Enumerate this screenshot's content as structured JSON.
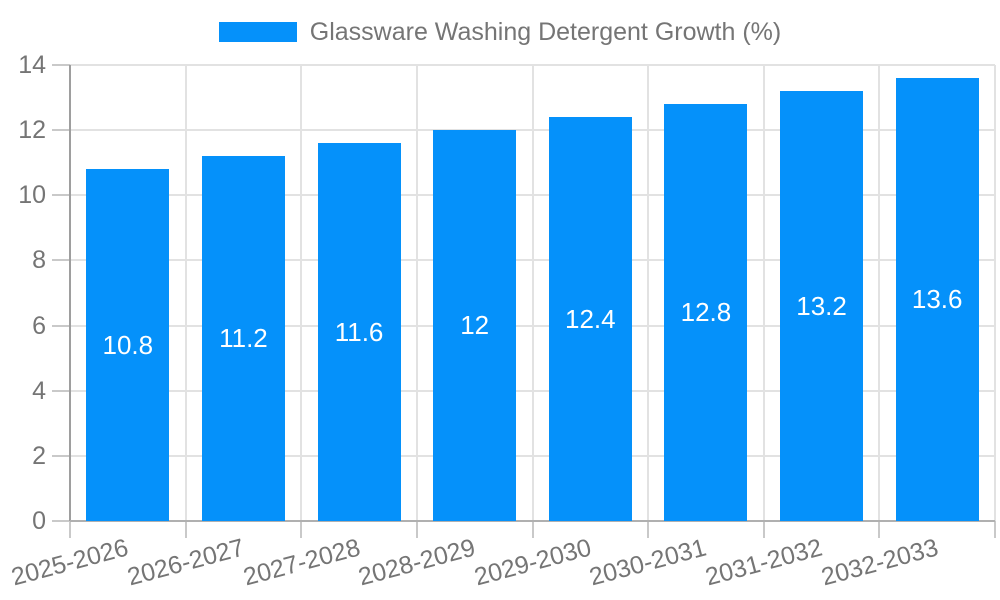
{
  "legend": {
    "label": "Glassware Washing Detergent Growth (%)"
  },
  "chart_data": {
    "type": "bar",
    "title": "Glassware Washing Detergent Growth (%)",
    "categories": [
      "2025-2026",
      "2026-2027",
      "2027-2028",
      "2028-2029",
      "2029-2030",
      "2030-2031",
      "2031-2032",
      "2032-2033"
    ],
    "series": [
      {
        "name": "Glassware Washing Detergent Growth (%)",
        "values": [
          10.8,
          11.2,
          11.6,
          12,
          12.4,
          12.8,
          13.2,
          13.6
        ]
      }
    ],
    "values": [
      10.8,
      11.2,
      11.6,
      12,
      12.4,
      12.8,
      13.2,
      13.6
    ],
    "data_labels": [
      "10.8",
      "11.2",
      "11.6",
      "12",
      "12.4",
      "12.8",
      "13.2",
      "13.6"
    ],
    "xlabel": "",
    "ylabel": "",
    "ylim": [
      0,
      14
    ],
    "yticks": [
      0,
      2,
      4,
      6,
      8,
      10,
      12,
      14
    ],
    "grid": true,
    "legend_position": "top",
    "data_labels_position": "center",
    "colors": {
      "bar": "#0591fa",
      "data_label": "#ffffff",
      "axis_text": "#757575",
      "gridline": "#e2e2e2",
      "baseline": "#b0b0b0",
      "axis_line": "#9e9e9e",
      "tick": "#c9c9c9",
      "background": "#ffffff"
    }
  }
}
